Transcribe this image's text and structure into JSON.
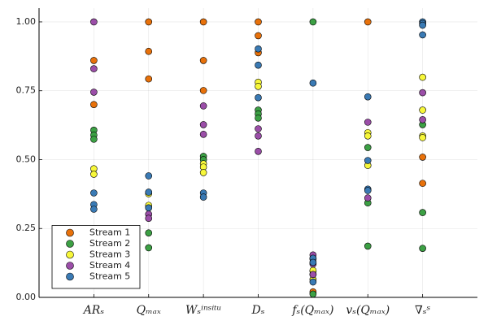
{
  "chart_data": {
    "type": "scatter",
    "categories": [
      "ARₛ",
      "Qₘₐₓ",
      "Wₛⁱⁿˢⁱᵗᵘ",
      "Dₛ",
      "fₛ(Qₘₐₓ)",
      "vₛ(Qₘₐₓ)",
      "∇ₛˢ"
    ],
    "ylim": [
      0,
      1.05
    ],
    "yticks": [
      {
        "value": 0,
        "label": "0.00"
      },
      {
        "value": 0.25,
        "label": "0.25"
      },
      {
        "value": 0.5,
        "label": "0.50"
      },
      {
        "value": 0.75,
        "label": "0.75"
      },
      {
        "value": 1,
        "label": "1.00"
      }
    ],
    "grid": true,
    "legend": "bottom-left",
    "series": [
      {
        "name": "Stream 1",
        "color": "#e8710a",
        "x": [
          "ARₛ",
          "ARₛ",
          "Qₘₐₓ",
          "Qₘₐₓ",
          "Qₘₐₓ",
          "Wₛⁱⁿˢⁱᵗᵘ",
          "Wₛⁱⁿˢⁱᵗᵘ",
          "Wₛⁱⁿˢⁱᵗᵘ",
          "Dₛ",
          "Dₛ",
          "Dₛ",
          "fₛ(Qₘₐₓ)",
          "fₛ(Qₘₐₓ)",
          "fₛ(Qₘₐₓ)",
          "vₛ(Qₘₐₓ)",
          "∇ₛˢ",
          "∇ₛˢ"
        ],
        "values": [
          0.86,
          0.7,
          1.0,
          0.893,
          0.793,
          1.0,
          0.86,
          0.751,
          1.0,
          0.95,
          0.888,
          0.02,
          0.095,
          0.083,
          1.0,
          0.509,
          0.414
        ]
      },
      {
        "name": "Stream 2",
        "color": "#3ca044",
        "x": [
          "ARₛ",
          "ARₛ",
          "ARₛ",
          "Qₘₐₓ",
          "Qₘₐₓ",
          "Wₛⁱⁿˢⁱᵗᵘ",
          "Wₛⁱⁿˢⁱᵗᵘ",
          "Dₛ",
          "Dₛ",
          "Dₛ",
          "fₛ(Qₘₐₓ)",
          "fₛ(Qₘₐₓ)",
          "vₛ(Qₘₐₓ)",
          "vₛ(Qₘₐₓ)",
          "vₛ(Qₘₐₓ)",
          "∇ₛˢ",
          "∇ₛˢ",
          "∇ₛˢ"
        ],
        "values": [
          0.607,
          0.589,
          0.574,
          0.234,
          0.18,
          0.512,
          0.5,
          0.68,
          0.666,
          0.651,
          1.0,
          0.012,
          0.544,
          0.343,
          0.186,
          0.627,
          0.308,
          0.178
        ]
      },
      {
        "name": "Stream 3",
        "color": "#f7f73a",
        "x": [
          "ARₛ",
          "ARₛ",
          "Qₘₐₓ",
          "Qₘₐₓ",
          "Wₛⁱⁿˢⁱᵗᵘ",
          "Wₛⁱⁿˢⁱᵗᵘ",
          "Wₛⁱⁿˢⁱᵗᵘ",
          "Dₛ",
          "Dₛ",
          "fₛ(Qₘₐₓ)",
          "fₛ(Qₘₐₓ)",
          "vₛ(Qₘₐₓ)",
          "vₛ(Qₘₐₓ)",
          "vₛ(Qₘₐₓ)",
          "∇ₛˢ",
          "∇ₛˢ",
          "∇ₛˢ",
          "∇ₛˢ"
        ],
        "values": [
          0.467,
          0.447,
          0.376,
          0.334,
          0.485,
          0.473,
          0.453,
          0.781,
          0.766,
          0.098,
          0.065,
          0.598,
          0.586,
          0.479,
          0.799,
          0.68,
          0.586,
          0.58
        ]
      },
      {
        "name": "Stream 4",
        "color": "#9b4ea8",
        "x": [
          "ARₛ",
          "ARₛ",
          "ARₛ",
          "Qₘₐₓ",
          "Qₘₐₓ",
          "Wₛⁱⁿˢⁱᵗᵘ",
          "Wₛⁱⁿˢⁱᵗᵘ",
          "Wₛⁱⁿˢⁱᵗᵘ",
          "Dₛ",
          "Dₛ",
          "Dₛ",
          "fₛ(Qₘₐₓ)",
          "fₛ(Qₘₐₓ)",
          "fₛ(Qₘₐₓ)",
          "fₛ(Qₘₐₓ)",
          "vₛ(Qₘₐₓ)",
          "vₛ(Qₘₐₓ)",
          "∇ₛˢ",
          "∇ₛˢ"
        ],
        "values": [
          1.0,
          0.83,
          0.745,
          0.302,
          0.287,
          0.695,
          0.627,
          0.592,
          0.612,
          0.586,
          0.53,
          0.154,
          0.139,
          0.121,
          0.083,
          0.636,
          0.361,
          0.743,
          0.645
        ]
      },
      {
        "name": "Stream 5",
        "color": "#3a7ab4",
        "x": [
          "ARₛ",
          "ARₛ",
          "ARₛ",
          "Qₘₐₓ",
          "Qₘₐₓ",
          "Qₘₐₓ",
          "Wₛⁱⁿˢⁱᵗᵘ",
          "Wₛⁱⁿˢⁱᵗᵘ",
          "Dₛ",
          "Dₛ",
          "Dₛ",
          "fₛ(Qₘₐₓ)",
          "fₛ(Qₘₐₓ)",
          "fₛ(Qₘₐₓ)",
          "fₛ(Qₘₐₓ)",
          "vₛ(Qₘₐₓ)",
          "vₛ(Qₘₐₓ)",
          "vₛ(Qₘₐₓ)",
          "vₛ(Qₘₐₓ)",
          "∇ₛˢ",
          "∇ₛˢ",
          "∇ₛˢ",
          "∇ₛˢ"
        ],
        "values": [
          0.379,
          0.337,
          0.32,
          0.441,
          0.382,
          0.325,
          0.379,
          0.364,
          0.902,
          0.843,
          0.725,
          0.778,
          0.142,
          0.127,
          0.056,
          0.728,
          0.497,
          0.393,
          0.388,
          1.0,
          0.994,
          0.988,
          0.953
        ]
      }
    ]
  }
}
